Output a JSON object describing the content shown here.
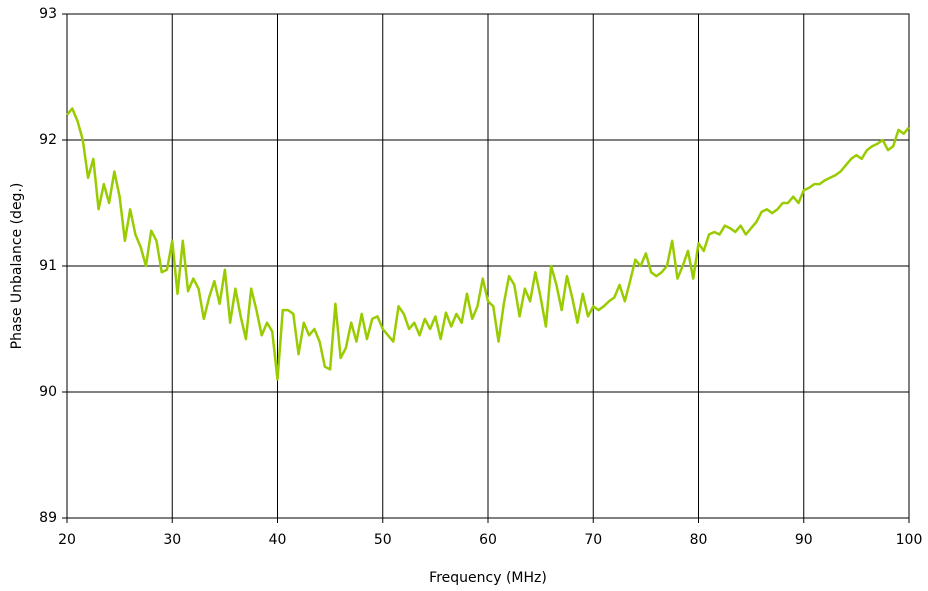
{
  "chart_data": {
    "type": "line",
    "xlabel": "Frequency (MHz)",
    "ylabel": "Phase Unbalance (deg.)",
    "color": "#99cc00",
    "grid": true,
    "xlim": [
      20,
      100
    ],
    "xticks": [
      20,
      30,
      40,
      50,
      60,
      70,
      80,
      90,
      100
    ],
    "ylim": [
      89,
      93
    ],
    "yticks": [
      89,
      90,
      91,
      92,
      93
    ],
    "x": [
      20,
      20.5,
      21,
      21.5,
      22,
      22.5,
      23,
      23.5,
      24,
      24.5,
      25,
      25.5,
      26,
      26.5,
      27,
      27.5,
      28,
      28.5,
      29,
      29.5,
      30,
      30.5,
      31,
      31.5,
      32,
      32.5,
      33,
      33.5,
      34,
      34.5,
      35,
      35.5,
      36,
      36.5,
      37,
      37.5,
      38,
      38.5,
      39,
      39.5,
      40,
      40.5,
      41,
      41.5,
      42,
      42.5,
      43,
      43.5,
      44,
      44.5,
      45,
      45.5,
      46,
      46.5,
      47,
      47.5,
      48,
      48.5,
      49,
      49.5,
      50,
      50.5,
      51,
      51.5,
      52,
      52.5,
      53,
      53.5,
      54,
      54.5,
      55,
      55.5,
      56,
      56.5,
      57,
      57.5,
      58,
      58.5,
      59,
      59.5,
      60,
      60.5,
      61,
      61.5,
      62,
      62.5,
      63,
      63.5,
      64,
      64.5,
      65,
      65.5,
      66,
      66.5,
      67,
      67.5,
      68,
      68.5,
      69,
      69.5,
      70,
      70.5,
      71,
      71.5,
      72,
      72.5,
      73,
      73.5,
      74,
      74.5,
      75,
      75.5,
      76,
      76.5,
      77,
      77.5,
      78,
      78.5,
      79,
      79.5,
      80,
      80.5,
      81,
      81.5,
      82,
      82.5,
      83,
      83.5,
      84,
      84.5,
      85,
      85.5,
      86,
      86.5,
      87,
      87.5,
      88,
      88.5,
      89,
      89.5,
      90,
      90.5,
      91,
      91.5,
      92,
      92.5,
      93,
      93.5,
      94,
      94.5,
      95,
      95.5,
      96,
      96.5,
      97,
      97.5,
      98,
      98.5,
      99,
      99.5,
      100
    ],
    "values": [
      92.2,
      92.25,
      92.15,
      92.0,
      91.7,
      91.85,
      91.45,
      91.65,
      91.5,
      91.75,
      91.55,
      91.2,
      91.45,
      91.25,
      91.15,
      91.0,
      91.28,
      91.2,
      90.95,
      90.97,
      91.2,
      90.78,
      91.2,
      90.8,
      90.9,
      90.82,
      90.58,
      90.75,
      90.88,
      90.7,
      90.97,
      90.55,
      90.82,
      90.6,
      90.42,
      90.82,
      90.65,
      90.45,
      90.55,
      90.48,
      90.1,
      90.65,
      90.65,
      90.62,
      90.3,
      90.55,
      90.45,
      90.5,
      90.4,
      90.2,
      90.18,
      90.7,
      90.27,
      90.35,
      90.55,
      90.4,
      90.62,
      90.42,
      90.58,
      90.6,
      90.5,
      90.45,
      90.4,
      90.68,
      90.62,
      90.5,
      90.55,
      90.45,
      90.58,
      90.5,
      90.6,
      90.42,
      90.63,
      90.52,
      90.62,
      90.55,
      90.78,
      90.58,
      90.68,
      90.9,
      90.72,
      90.68,
      90.4,
      90.7,
      90.92,
      90.85,
      90.6,
      90.82,
      90.72,
      90.95,
      90.75,
      90.52,
      91.0,
      90.85,
      90.65,
      90.92,
      90.75,
      90.55,
      90.78,
      90.6,
      90.68,
      90.65,
      90.68,
      90.72,
      90.75,
      90.85,
      90.72,
      90.88,
      91.05,
      91.0,
      91.1,
      90.95,
      90.92,
      90.95,
      91.0,
      91.2,
      90.9,
      91.0,
      91.12,
      90.9,
      91.18,
      91.12,
      91.25,
      91.27,
      91.25,
      91.32,
      91.3,
      91.27,
      91.32,
      91.25,
      91.3,
      91.35,
      91.43,
      91.45,
      91.42,
      91.45,
      91.5,
      91.5,
      91.55,
      91.5,
      91.6,
      91.62,
      91.65,
      91.65,
      91.68,
      91.7,
      91.72,
      91.75,
      91.8,
      91.85,
      91.88,
      91.85,
      91.92,
      91.95,
      91.97,
      92.0,
      91.92,
      91.95,
      92.08,
      92.05,
      92.1
    ]
  }
}
